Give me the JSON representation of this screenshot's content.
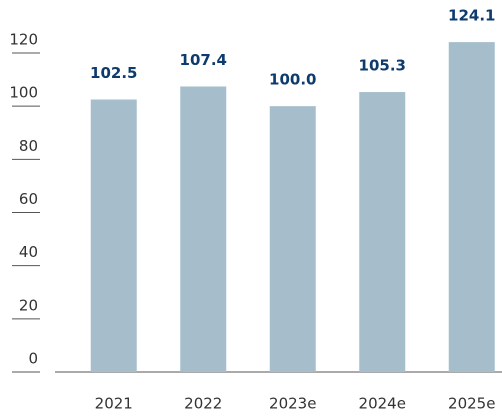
{
  "chart_data": {
    "type": "bar",
    "categories": [
      "2021",
      "2022",
      "2023e",
      "2024e",
      "2025e"
    ],
    "values": [
      102.5,
      107.4,
      100.0,
      105.3,
      124.1
    ],
    "value_labels": [
      "102.5",
      "107.4",
      "100.0",
      "105.3",
      "124.1"
    ],
    "color": "#a6bdcb",
    "ylim": [
      0,
      120
    ],
    "yticks": [
      0,
      20,
      40,
      60,
      80,
      100,
      120
    ]
  }
}
